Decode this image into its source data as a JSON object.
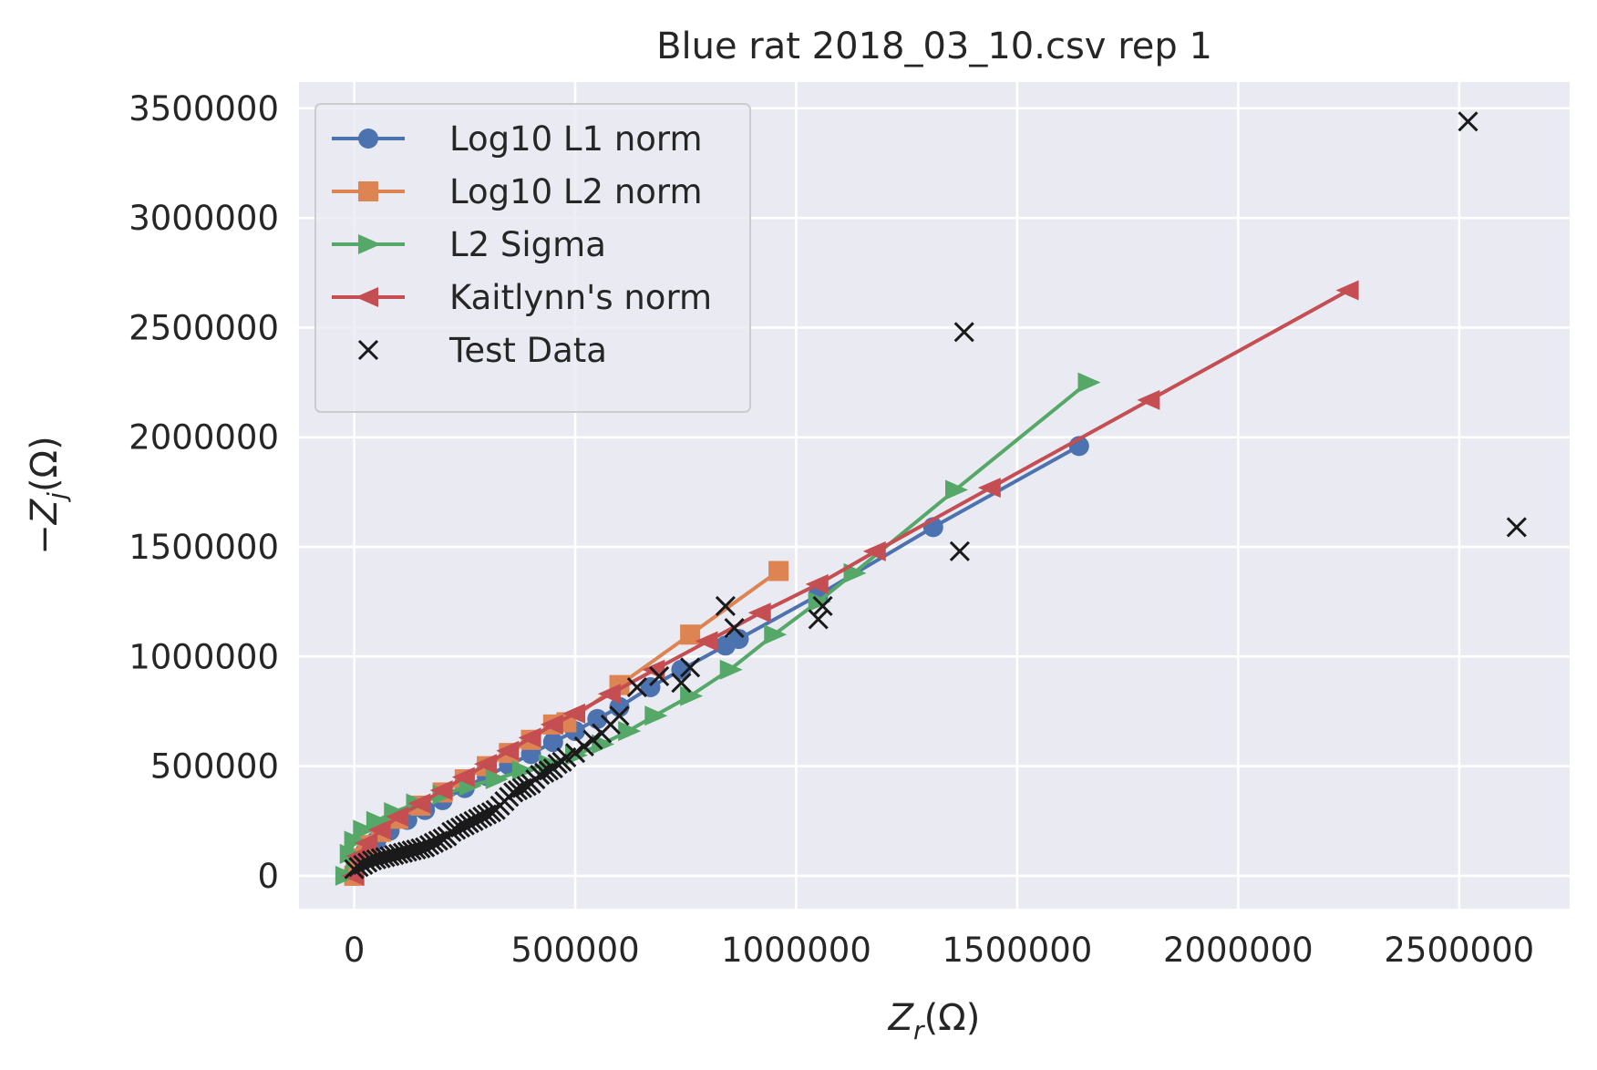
{
  "chart_data": {
    "type": "line",
    "title": "Blue rat 2018_03_10.csv rep 1",
    "xlabel": {
      "base": "Z",
      "sub": "r",
      "unit": "(Ω)"
    },
    "ylabel": {
      "prefix": "−",
      "base": "Z",
      "sub": "j",
      "unit": "(Ω)"
    },
    "xlim": [
      -125000,
      2750000
    ],
    "ylim": [
      -150000,
      3620000
    ],
    "xticks": [
      0,
      500000,
      1000000,
      1500000,
      2000000,
      2500000
    ],
    "xtick_labels": [
      "0",
      "500000",
      "1000000",
      "1500000",
      "2000000",
      "2500000"
    ],
    "yticks": [
      0,
      500000,
      1000000,
      1500000,
      2000000,
      2500000,
      3000000,
      3500000
    ],
    "ytick_labels": [
      "0",
      "500000",
      "1000000",
      "1500000",
      "2000000",
      "2500000",
      "3000000",
      "3500000"
    ],
    "grid": true,
    "legend_position": "top-left",
    "series": [
      {
        "name": "Log10 L1 norm",
        "color": "#4c72b0",
        "marker": "circle",
        "x": [
          0,
          10000,
          25000,
          50000,
          80000,
          120000,
          160000,
          200000,
          250000,
          300000,
          350000,
          400000,
          450000,
          500000,
          550000,
          600000,
          670000,
          740000,
          840000,
          870000,
          1050000,
          1310000,
          1640000
        ],
        "y": [
          0,
          60000,
          110000,
          160000,
          205000,
          255000,
          300000,
          345000,
          400000,
          455000,
          505000,
          555000,
          610000,
          660000,
          715000,
          770000,
          860000,
          940000,
          1050000,
          1080000,
          1280000,
          1590000,
          1960000
        ]
      },
      {
        "name": "Log10 L2 norm",
        "color": "#dd8452",
        "marker": "square",
        "x": [
          0,
          10000,
          30000,
          60000,
          100000,
          150000,
          200000,
          250000,
          300000,
          350000,
          400000,
          450000,
          480000,
          600000,
          760000,
          960000
        ],
        "y": [
          0,
          80000,
          140000,
          200000,
          260000,
          320000,
          380000,
          440000,
          500000,
          560000,
          620000,
          690000,
          700000,
          870000,
          1100000,
          1390000
        ]
      },
      {
        "name": "L2 Sigma",
        "color": "#55a868",
        "marker": "triangle-right",
        "x": [
          -20000,
          -10000,
          0,
          20000,
          50000,
          90000,
          140000,
          200000,
          260000,
          320000,
          380000,
          440000,
          500000,
          560000,
          620000,
          680000,
          760000,
          850000,
          950000,
          1050000,
          1130000,
          1360000,
          1660000
        ],
        "y": [
          0,
          100000,
          160000,
          210000,
          250000,
          290000,
          330000,
          370000,
          410000,
          440000,
          480000,
          510000,
          550000,
          600000,
          660000,
          730000,
          820000,
          940000,
          1100000,
          1250000,
          1380000,
          1760000,
          2250000
        ],
        "line_only_x": [],
        "line_only_y": []
      },
      {
        "name": "Kaitlynn's norm",
        "color": "#c44e52",
        "marker": "triangle-left",
        "x": [
          0,
          10000,
          30000,
          60000,
          100000,
          150000,
          200000,
          250000,
          300000,
          350000,
          400000,
          450000,
          500000,
          580000,
          680000,
          800000,
          920000,
          1050000,
          1180000,
          1440000,
          1800000,
          2250000
        ],
        "y": [
          0,
          90000,
          150000,
          210000,
          270000,
          330000,
          390000,
          450000,
          510000,
          570000,
          630000,
          690000,
          740000,
          830000,
          940000,
          1070000,
          1200000,
          1330000,
          1480000,
          1770000,
          2170000,
          2670000
        ]
      },
      {
        "name": "Test Data",
        "color": "#000000",
        "marker": "x",
        "line": false,
        "x": [
          0,
          10000,
          20000,
          30000,
          40000,
          50000,
          60000,
          70000,
          80000,
          90000,
          100000,
          110000,
          120000,
          130000,
          140000,
          150000,
          160000,
          170000,
          180000,
          190000,
          200000,
          210000,
          220000,
          230000,
          240000,
          250000,
          260000,
          270000,
          280000,
          290000,
          300000,
          310000,
          320000,
          330000,
          340000,
          350000,
          360000,
          370000,
          380000,
          390000,
          400000,
          410000,
          420000,
          430000,
          440000,
          450000,
          460000,
          470000,
          480000,
          500000,
          520000,
          540000,
          560000,
          580000,
          600000,
          640000,
          690000,
          740000,
          760000,
          840000,
          860000,
          1050000,
          1060000,
          1370000,
          1380000,
          2520000,
          2630000
        ],
        "y": [
          30000,
          40000,
          50000,
          60000,
          70000,
          75000,
          80000,
          85000,
          90000,
          95000,
          100000,
          105000,
          110000,
          115000,
          120000,
          125000,
          130000,
          140000,
          150000,
          160000,
          170000,
          180000,
          200000,
          210000,
          220000,
          230000,
          240000,
          250000,
          260000,
          270000,
          280000,
          290000,
          300000,
          320000,
          340000,
          360000,
          380000,
          390000,
          400000,
          410000,
          420000,
          440000,
          460000,
          470000,
          480000,
          490000,
          510000,
          520000,
          540000,
          560000,
          590000,
          620000,
          650000,
          690000,
          730000,
          860000,
          910000,
          880000,
          950000,
          1230000,
          1130000,
          1170000,
          1230000,
          1480000,
          2480000,
          3440000,
          1590000
        ]
      }
    ]
  }
}
